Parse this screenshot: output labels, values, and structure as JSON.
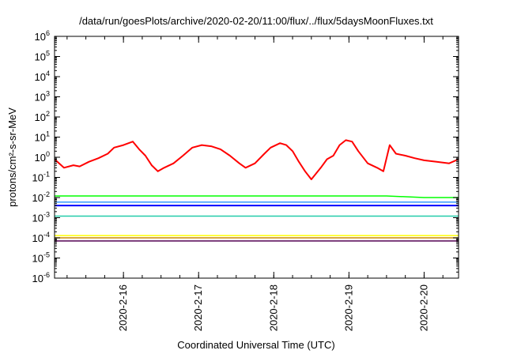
{
  "chart_data": {
    "type": "line",
    "title": "/data/run/goesPlots/archive/2020-02-20/11:00/flux/../flux/5daysMoonFluxes.txt",
    "xlabel": "Coordinated Universal Time (UTC)",
    "ylabel": "protons/cm²-s-sr-MeV",
    "x_range": [
      "2020-02-15T02:00",
      "2020-02-20T11:00"
    ],
    "x_ticks": [
      "2020-2-16",
      "2020-2-17",
      "2020-2-18",
      "2020-2-19",
      "2020-2-20"
    ],
    "y_scale": "log",
    "y_range": [
      1e-06,
      1000000.0
    ],
    "y_ticks": [
      {
        "value": 1e-06,
        "base": "10",
        "exp": "-6"
      },
      {
        "value": 1e-05,
        "base": "10",
        "exp": "-5"
      },
      {
        "value": 0.0001,
        "base": "10",
        "exp": "-4"
      },
      {
        "value": 0.001,
        "base": "10",
        "exp": "-3"
      },
      {
        "value": 0.01,
        "base": "10",
        "exp": "-2"
      },
      {
        "value": 0.1,
        "base": "10",
        "exp": "-1"
      },
      {
        "value": 1.0,
        "base": "10",
        "exp": "0"
      },
      {
        "value": 10.0,
        "base": "10",
        "exp": "1"
      },
      {
        "value": 100.0,
        "base": "10",
        "exp": "2"
      },
      {
        "value": 1000.0,
        "base": "10",
        "exp": "3"
      },
      {
        "value": 10000.0,
        "base": "10",
        "exp": "4"
      },
      {
        "value": 100000.0,
        "base": "10",
        "exp": "5"
      },
      {
        "value": 1000000.0,
        "base": "10",
        "exp": "6"
      }
    ],
    "grid": false,
    "legend": "none",
    "series": [
      {
        "color": "#ff0000",
        "stroke": 2,
        "x": [
          "2020-02-15T02:00",
          "2020-02-15T05:00",
          "2020-02-15T08:00",
          "2020-02-15T10:00",
          "2020-02-15T13:00",
          "2020-02-15T16:00",
          "2020-02-15T19:00",
          "2020-02-15T21:00",
          "2020-02-16T00:00",
          "2020-02-16T03:00",
          "2020-02-16T05:00",
          "2020-02-16T07:00",
          "2020-02-16T09:00",
          "2020-02-16T11:00",
          "2020-02-16T13:00",
          "2020-02-16T16:00",
          "2020-02-16T19:00",
          "2020-02-16T22:00",
          "2020-02-17T01:00",
          "2020-02-17T04:00",
          "2020-02-17T07:00",
          "2020-02-17T10:00",
          "2020-02-17T13:00",
          "2020-02-17T15:00",
          "2020-02-17T18:00",
          "2020-02-17T21:00",
          "2020-02-17T23:00",
          "2020-02-18T02:00",
          "2020-02-18T04:00",
          "2020-02-18T06:00",
          "2020-02-18T08:00",
          "2020-02-18T10:00",
          "2020-02-18T12:00",
          "2020-02-18T15:00",
          "2020-02-18T17:00",
          "2020-02-18T19:00",
          "2020-02-18T21:00",
          "2020-02-18T23:00",
          "2020-02-19T01:00",
          "2020-02-19T03:00",
          "2020-02-19T06:00",
          "2020-02-19T09:00",
          "2020-02-19T11:00",
          "2020-02-19T13:00",
          "2020-02-19T15:00",
          "2020-02-19T18:00",
          "2020-02-19T21:00",
          "2020-02-20T00:00",
          "2020-02-20T04:00",
          "2020-02-20T08:00",
          "2020-02-20T11:00"
        ],
        "y": [
          0.8,
          0.3,
          0.4,
          0.35,
          0.6,
          0.9,
          1.5,
          3,
          4,
          6,
          2.5,
          1.2,
          0.4,
          0.2,
          0.3,
          0.5,
          1.2,
          3,
          4,
          3.5,
          2.5,
          1.2,
          0.5,
          0.3,
          0.5,
          1.5,
          3,
          5,
          4,
          2,
          0.6,
          0.2,
          0.08,
          0.3,
          0.8,
          1.2,
          4,
          7,
          6,
          2,
          0.5,
          0.3,
          0.2,
          4,
          1.5,
          1.2,
          0.9,
          0.7,
          0.6,
          0.5,
          0.8
        ]
      },
      {
        "color": "#00ff00",
        "stroke": 1.5,
        "x": [
          "2020-02-15T02:00",
          "2020-02-15T12:00",
          "2020-02-16T00:00",
          "2020-02-16T12:00",
          "2020-02-17T00:00",
          "2020-02-17T12:00",
          "2020-02-18T00:00",
          "2020-02-18T12:00",
          "2020-02-19T00:00",
          "2020-02-19T12:00",
          "2020-02-20T00:00",
          "2020-02-20T11:00"
        ],
        "y": [
          0.012,
          0.012,
          0.012,
          0.012,
          0.012,
          0.012,
          0.012,
          0.012,
          0.012,
          0.012,
          0.01,
          0.01
        ]
      },
      {
        "color": "#3399ff",
        "stroke": 1.5,
        "x": [
          "2020-02-15T02:00",
          "2020-02-15T12:00",
          "2020-02-16T00:00",
          "2020-02-16T12:00",
          "2020-02-17T00:00",
          "2020-02-17T12:00",
          "2020-02-18T00:00",
          "2020-02-18T12:00",
          "2020-02-19T00:00",
          "2020-02-19T12:00",
          "2020-02-20T00:00",
          "2020-02-20T11:00"
        ],
        "y": [
          0.006,
          0.006,
          0.006,
          0.006,
          0.006,
          0.006,
          0.006,
          0.006,
          0.006,
          0.006,
          0.006,
          0.006
        ]
      },
      {
        "color": "#0000ff",
        "stroke": 2,
        "x": [
          "2020-02-15T02:00",
          "2020-02-15T12:00",
          "2020-02-16T00:00",
          "2020-02-16T12:00",
          "2020-02-17T00:00",
          "2020-02-17T12:00",
          "2020-02-18T00:00",
          "2020-02-18T12:00",
          "2020-02-19T00:00",
          "2020-02-19T12:00",
          "2020-02-20T00:00",
          "2020-02-20T11:00"
        ],
        "y": [
          0.004,
          0.004,
          0.004,
          0.004,
          0.004,
          0.004,
          0.004,
          0.004,
          0.004,
          0.004,
          0.004,
          0.004
        ]
      },
      {
        "color": "#22ccaa",
        "stroke": 1.5,
        "x": [
          "2020-02-15T02:00",
          "2020-02-15T12:00",
          "2020-02-16T00:00",
          "2020-02-16T12:00",
          "2020-02-17T00:00",
          "2020-02-17T12:00",
          "2020-02-18T00:00",
          "2020-02-18T12:00",
          "2020-02-19T00:00",
          "2020-02-19T12:00",
          "2020-02-20T00:00",
          "2020-02-20T11:00"
        ],
        "y": [
          0.0012,
          0.0012,
          0.0012,
          0.0012,
          0.0012,
          0.0012,
          0.0012,
          0.0012,
          0.0012,
          0.0012,
          0.0012,
          0.0012
        ]
      },
      {
        "color": "#ffff00",
        "stroke": 1.5,
        "x": [
          "2020-02-15T02:00",
          "2020-02-15T12:00",
          "2020-02-16T00:00",
          "2020-02-16T12:00",
          "2020-02-17T00:00",
          "2020-02-17T12:00",
          "2020-02-18T00:00",
          "2020-02-18T12:00",
          "2020-02-19T00:00",
          "2020-02-19T12:00",
          "2020-02-20T00:00",
          "2020-02-20T11:00"
        ],
        "y": [
          0.00013,
          0.00013,
          0.00013,
          0.00013,
          0.00013,
          0.00013,
          0.00013,
          0.00013,
          0.00013,
          0.00013,
          0.00013,
          0.00013
        ]
      },
      {
        "color": "#cc8800",
        "stroke": 1.5,
        "x": [
          "2020-02-15T02:00",
          "2020-02-15T12:00",
          "2020-02-16T00:00",
          "2020-02-16T12:00",
          "2020-02-17T00:00",
          "2020-02-17T12:00",
          "2020-02-18T00:00",
          "2020-02-18T12:00",
          "2020-02-19T00:00",
          "2020-02-19T12:00",
          "2020-02-20T00:00",
          "2020-02-20T11:00"
        ],
        "y": [
          0.0001,
          0.0001,
          0.0001,
          0.0001,
          0.0001,
          0.0001,
          0.0001,
          0.0001,
          0.0001,
          0.0001,
          0.0001,
          0.0001
        ]
      },
      {
        "color": "#7a3a7a",
        "stroke": 2,
        "x": [
          "2020-02-15T02:00",
          "2020-02-15T12:00",
          "2020-02-16T00:00",
          "2020-02-16T12:00",
          "2020-02-17T00:00",
          "2020-02-17T12:00",
          "2020-02-18T00:00",
          "2020-02-18T12:00",
          "2020-02-19T00:00",
          "2020-02-19T12:00",
          "2020-02-20T00:00",
          "2020-02-20T11:00"
        ],
        "y": [
          7e-05,
          7e-05,
          7e-05,
          7e-05,
          7e-05,
          7e-05,
          7e-05,
          7e-05,
          7e-05,
          7e-05,
          7e-05,
          7e-05
        ]
      }
    ]
  }
}
